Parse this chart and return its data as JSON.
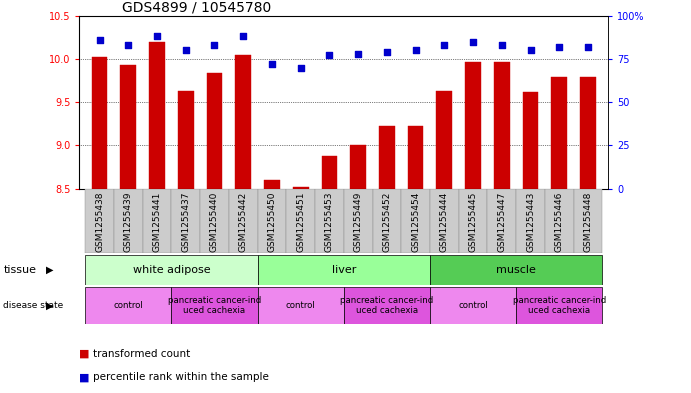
{
  "title": "GDS4899 / 10545780",
  "samples": [
    "GSM1255438",
    "GSM1255439",
    "GSM1255441",
    "GSM1255437",
    "GSM1255440",
    "GSM1255442",
    "GSM1255450",
    "GSM1255451",
    "GSM1255453",
    "GSM1255449",
    "GSM1255452",
    "GSM1255454",
    "GSM1255444",
    "GSM1255445",
    "GSM1255447",
    "GSM1255443",
    "GSM1255446",
    "GSM1255448"
  ],
  "transformed_count": [
    10.02,
    9.93,
    10.2,
    9.63,
    9.84,
    10.05,
    8.6,
    8.52,
    8.88,
    9.01,
    9.22,
    9.22,
    9.63,
    9.97,
    9.97,
    9.62,
    9.79,
    9.79
  ],
  "percentile_rank": [
    86,
    83,
    88,
    80,
    83,
    88,
    72,
    70,
    77,
    78,
    79,
    80,
    83,
    85,
    83,
    80,
    82,
    82
  ],
  "ylim_left": [
    8.5,
    10.5
  ],
  "ylim_right": [
    0,
    100
  ],
  "yticks_left": [
    8.5,
    9.0,
    9.5,
    10.0,
    10.5
  ],
  "yticks_right": [
    0,
    25,
    50,
    75,
    100
  ],
  "bar_color": "#cc0000",
  "dot_color": "#0000cc",
  "tissue_groups": [
    {
      "label": "white adipose",
      "start": 0,
      "end": 5,
      "color": "#ccffcc"
    },
    {
      "label": "liver",
      "start": 6,
      "end": 11,
      "color": "#99ff99"
    },
    {
      "label": "muscle",
      "start": 12,
      "end": 17,
      "color": "#55cc55"
    }
  ],
  "disease_groups": [
    {
      "label": "control",
      "start": 0,
      "end": 2,
      "color": "#ee88ee"
    },
    {
      "label": "pancreatic cancer-ind\nuced cachexia",
      "start": 3,
      "end": 5,
      "color": "#dd55dd"
    },
    {
      "label": "control",
      "start": 6,
      "end": 8,
      "color": "#ee88ee"
    },
    {
      "label": "pancreatic cancer-ind\nuced cachexia",
      "start": 9,
      "end": 11,
      "color": "#dd55dd"
    },
    {
      "label": "control",
      "start": 12,
      "end": 14,
      "color": "#ee88ee"
    },
    {
      "label": "pancreatic cancer-ind\nuced cachexia",
      "start": 15,
      "end": 17,
      "color": "#dd55dd"
    }
  ],
  "background_color": "#ffffff",
  "title_fontsize": 10,
  "tick_fontsize": 7,
  "label_fontsize": 8,
  "legend_fontsize": 7.5
}
